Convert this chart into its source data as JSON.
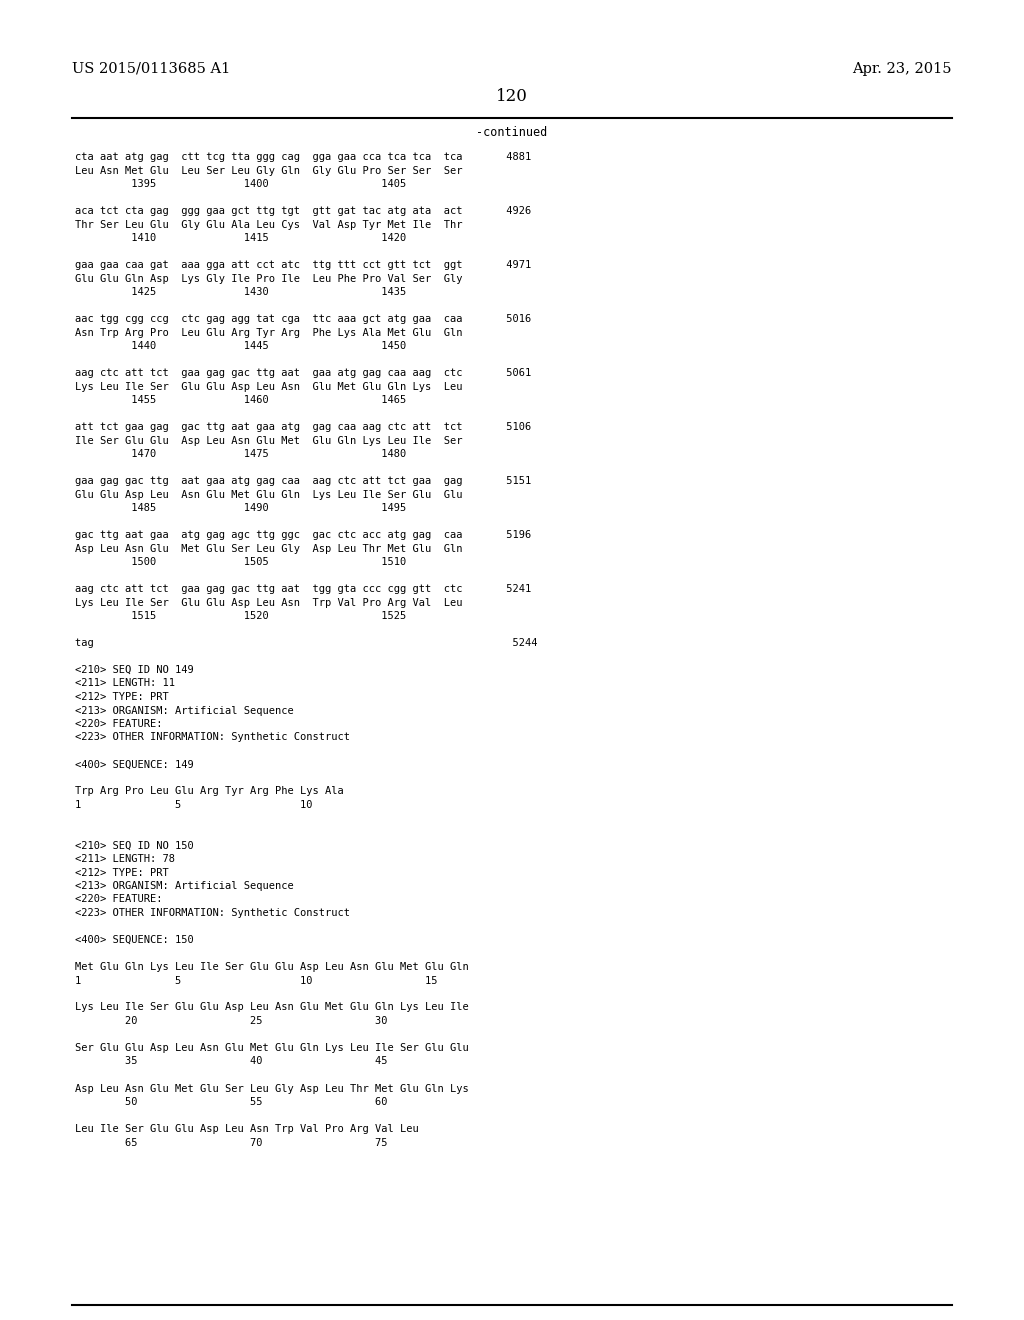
{
  "bg_color": "#ffffff",
  "header_left": "US 2015/0113685 A1",
  "header_right": "Apr. 23, 2015",
  "page_number": "120",
  "continued_label": "-continued",
  "font_family": "monospace",
  "content_lines": [
    "cta aat atg gag  ctt tcg tta ggg cag  gga gaa cca tca tca  tca       4881",
    "Leu Asn Met Glu  Leu Ser Leu Gly Gln  Gly Glu Pro Ser Ser  Ser",
    "         1395              1400                  1405",
    "",
    "aca tct cta gag  ggg gaa gct ttg tgt  gtt gat tac atg ata  act       4926",
    "Thr Ser Leu Glu  Gly Glu Ala Leu Cys  Val Asp Tyr Met Ile  Thr",
    "         1410              1415                  1420",
    "",
    "gaa gaa caa gat  aaa gga att cct atc  ttg ttt cct gtt tct  ggt       4971",
    "Glu Glu Gln Asp  Lys Gly Ile Pro Ile  Leu Phe Pro Val Ser  Gly",
    "         1425              1430                  1435",
    "",
    "aac tgg cgg ccg  ctc gag agg tat cga  ttc aaa gct atg gaa  caa       5016",
    "Asn Trp Arg Pro  Leu Glu Arg Tyr Arg  Phe Lys Ala Met Glu  Gln",
    "         1440              1445                  1450",
    "",
    "aag ctc att tct  gaa gag gac ttg aat  gaa atg gag caa aag  ctc       5061",
    "Lys Leu Ile Ser  Glu Glu Asp Leu Asn  Glu Met Glu Gln Lys  Leu",
    "         1455              1460                  1465",
    "",
    "att tct gaa gag  gac ttg aat gaa atg  gag caa aag ctc att  tct       5106",
    "Ile Ser Glu Glu  Asp Leu Asn Glu Met  Glu Gln Lys Leu Ile  Ser",
    "         1470              1475                  1480",
    "",
    "gaa gag gac ttg  aat gaa atg gag caa  aag ctc att tct gaa  gag       5151",
    "Glu Glu Asp Leu  Asn Glu Met Glu Gln  Lys Leu Ile Ser Glu  Glu",
    "         1485              1490                  1495",
    "",
    "gac ttg aat gaa  atg gag agc ttg ggc  gac ctc acc atg gag  caa       5196",
    "Asp Leu Asn Glu  Met Glu Ser Leu Gly  Asp Leu Thr Met Glu  Gln",
    "         1500              1505                  1510",
    "",
    "aag ctc att tct  gaa gag gac ttg aat  tgg gta ccc cgg gtt  ctc       5241",
    "Lys Leu Ile Ser  Glu Glu Asp Leu Asn  Trp Val Pro Arg Val  Leu",
    "         1515              1520                  1525",
    "",
    "tag                                                                   5244",
    "",
    "<210> SEQ ID NO 149",
    "<211> LENGTH: 11",
    "<212> TYPE: PRT",
    "<213> ORGANISM: Artificial Sequence",
    "<220> FEATURE:",
    "<223> OTHER INFORMATION: Synthetic Construct",
    "",
    "<400> SEQUENCE: 149",
    "",
    "Trp Arg Pro Leu Glu Arg Tyr Arg Phe Lys Ala",
    "1               5                   10",
    "",
    "",
    "<210> SEQ ID NO 150",
    "<211> LENGTH: 78",
    "<212> TYPE: PRT",
    "<213> ORGANISM: Artificial Sequence",
    "<220> FEATURE:",
    "<223> OTHER INFORMATION: Synthetic Construct",
    "",
    "<400> SEQUENCE: 150",
    "",
    "Met Glu Gln Lys Leu Ile Ser Glu Glu Asp Leu Asn Glu Met Glu Gln",
    "1               5                   10                  15",
    "",
    "Lys Leu Ile Ser Glu Glu Asp Leu Asn Glu Met Glu Gln Lys Leu Ile",
    "        20                  25                  30",
    "",
    "Ser Glu Glu Asp Leu Asn Glu Met Glu Gln Lys Leu Ile Ser Glu Glu",
    "        35                  40                  45",
    "",
    "Asp Leu Asn Glu Met Glu Ser Leu Gly Asp Leu Thr Met Glu Gln Lys",
    "        50                  55                  60",
    "",
    "Leu Ile Ser Glu Glu Asp Leu Asn Trp Val Pro Arg Val Leu",
    "        65                  70                  75"
  ]
}
